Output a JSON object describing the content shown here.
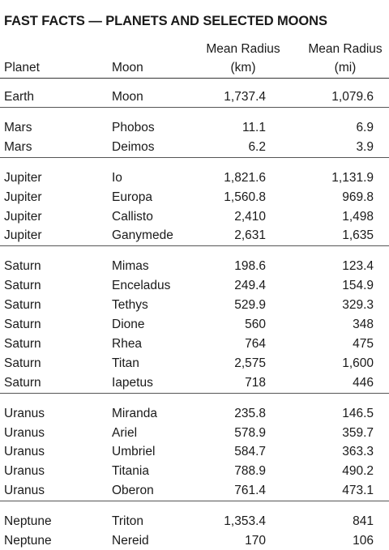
{
  "title": "FAST FACTS — PLANETS AND SELECTED MOONS",
  "columns": {
    "planet": "Planet",
    "moon": "Moon",
    "radius_km": "Mean Radius\n(km)",
    "radius_mi": "Mean Radius\n(mi)"
  },
  "groups": [
    {
      "rows": [
        {
          "planet": "Earth",
          "moon": "Moon",
          "km": "1,737.4",
          "mi": "1,079.6"
        }
      ]
    },
    {
      "rows": [
        {
          "planet": "Mars",
          "moon": "Phobos",
          "km": "11.1",
          "mi": "6.9"
        },
        {
          "planet": "Mars",
          "moon": "Deimos",
          "km": "6.2",
          "mi": "3.9"
        }
      ]
    },
    {
      "rows": [
        {
          "planet": "Jupiter",
          "moon": "Io",
          "km": "1,821.6",
          "mi": "1,131.9"
        },
        {
          "planet": "Jupiter",
          "moon": "Europa",
          "km": "1,560.8",
          "mi": "969.8"
        },
        {
          "planet": "Jupiter",
          "moon": "Callisto",
          "km": "2,410",
          "mi": "1,498"
        },
        {
          "planet": "Jupiter",
          "moon": "Ganymede",
          "km": "2,631",
          "mi": "1,635"
        }
      ]
    },
    {
      "rows": [
        {
          "planet": "Saturn",
          "moon": "Mimas",
          "km": "198.6",
          "mi": "123.4"
        },
        {
          "planet": "Saturn",
          "moon": "Enceladus",
          "km": "249.4",
          "mi": "154.9"
        },
        {
          "planet": "Saturn",
          "moon": "Tethys",
          "km": "529.9",
          "mi": "329.3"
        },
        {
          "planet": "Saturn",
          "moon": "Dione",
          "km": "560",
          "mi": "348"
        },
        {
          "planet": "Saturn",
          "moon": "Rhea",
          "km": "764",
          "mi": "475"
        },
        {
          "planet": "Saturn",
          "moon": "Titan",
          "km": "2,575",
          "mi": "1,600"
        },
        {
          "planet": "Saturn",
          "moon": "Iapetus",
          "km": "718",
          "mi": "446"
        }
      ]
    },
    {
      "rows": [
        {
          "planet": "Uranus",
          "moon": "Miranda",
          "km": "235.8",
          "mi": "146.5"
        },
        {
          "planet": "Uranus",
          "moon": "Ariel",
          "km": "578.9",
          "mi": "359.7"
        },
        {
          "planet": "Uranus",
          "moon": "Umbriel",
          "km": "584.7",
          "mi": "363.3"
        },
        {
          "planet": "Uranus",
          "moon": "Titania",
          "km": "788.9",
          "mi": "490.2"
        },
        {
          "planet": "Uranus",
          "moon": "Oberon",
          "km": "761.4",
          "mi": "473.1"
        }
      ]
    },
    {
      "rows": [
        {
          "planet": "Neptune",
          "moon": "Triton",
          "km": "1,353.4",
          "mi": "841"
        },
        {
          "planet": "Neptune",
          "moon": "Nereid",
          "km": "170",
          "mi": "106"
        }
      ]
    }
  ]
}
